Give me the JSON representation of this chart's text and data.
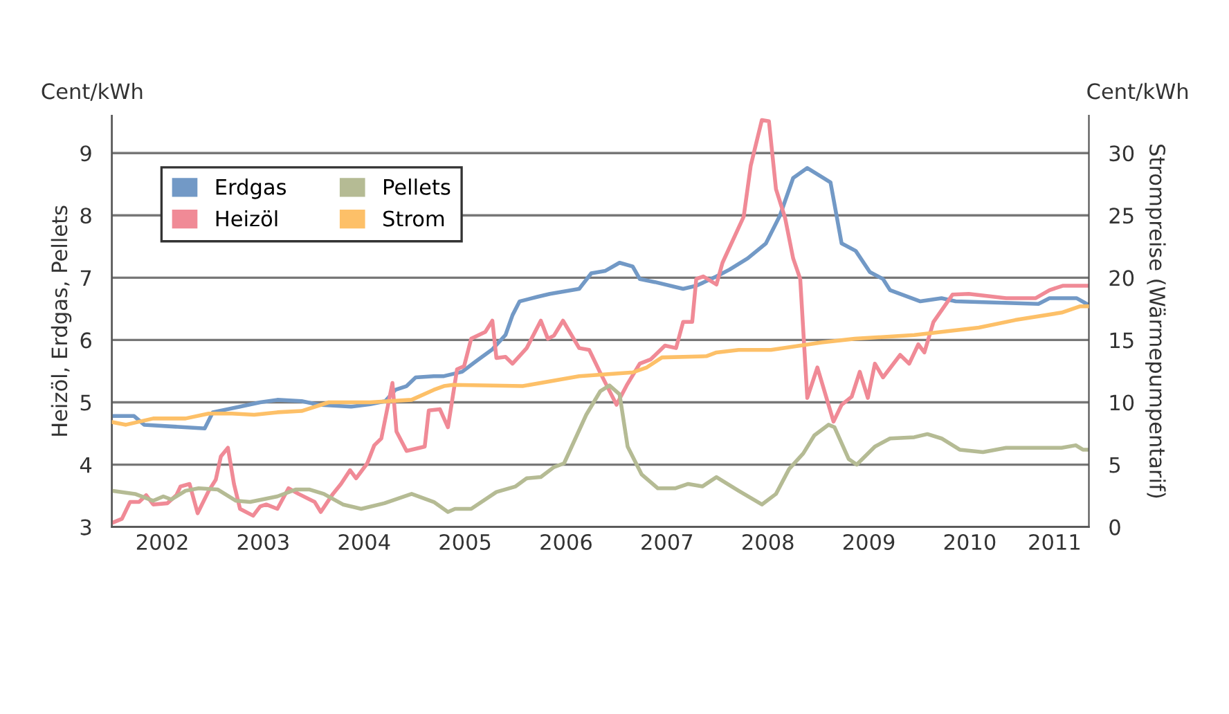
{
  "chart_data": {
    "type": "line",
    "ylabel": "Heizöl, Erdgas, Pellets",
    "y2label": "Strompreise (Wärmepumpentarif)",
    "annotations": [
      "Cent/kWh",
      "Cent/kWh"
    ],
    "xlim": [
      2002,
      2011.68
    ],
    "xticks": [
      {
        "value": 2002.5,
        "label": "2002"
      },
      {
        "value": 2003.5,
        "label": "2003"
      },
      {
        "value": 2004.5,
        "label": "2004"
      },
      {
        "value": 2005.5,
        "label": "2005"
      },
      {
        "value": 2006.5,
        "label": "2006"
      },
      {
        "value": 2007.5,
        "label": "2007"
      },
      {
        "value": 2008.5,
        "label": "2008"
      },
      {
        "value": 2009.5,
        "label": "2009"
      },
      {
        "value": 2010.5,
        "label": "2010"
      },
      {
        "value": 2011.34,
        "label": "2011"
      }
    ],
    "ylim": [
      3,
      9.6
    ],
    "yticks": [
      3,
      4,
      5,
      6,
      7,
      8,
      9
    ],
    "y2lim": [
      0,
      33
    ],
    "y2ticks": [
      0,
      5,
      10,
      15,
      20,
      25,
      30
    ],
    "grid": "y",
    "legend": "top left",
    "marker": "none",
    "line_style": "solid",
    "series": [
      {
        "name": "Erdgas",
        "color": "#7299c6",
        "x": [
          2002.01,
          2002.22,
          2002.32,
          2002.92,
          2003.0,
          2003.27,
          2003.47,
          2003.64,
          2003.88,
          2004.05,
          2004.37,
          2004.56,
          2004.71,
          2004.81,
          2004.92,
          2005.01,
          2005.19,
          2005.29,
          2005.47,
          2005.6,
          2005.77,
          2005.9,
          2005.97,
          2006.04,
          2006.21,
          2006.34,
          2006.63,
          2006.75,
          2006.89,
          2007.03,
          2007.16,
          2007.23,
          2007.38,
          2007.66,
          2007.79,
          2007.99,
          2008.12,
          2008.3,
          2008.48,
          2008.62,
          2008.75,
          2008.89,
          2009.12,
          2009.23,
          2009.37,
          2009.51,
          2009.64,
          2009.71,
          2010.01,
          2010.22,
          2010.36,
          2011.18,
          2011.29,
          2011.56,
          2011.68
        ],
        "values": [
          4.78,
          4.78,
          4.64,
          4.58,
          4.84,
          4.93,
          5.0,
          5.04,
          5.02,
          4.96,
          4.93,
          4.97,
          5.02,
          5.2,
          5.26,
          5.4,
          5.42,
          5.42,
          5.49,
          5.65,
          5.85,
          6.08,
          6.4,
          6.62,
          6.69,
          6.74,
          6.82,
          7.07,
          7.11,
          7.24,
          7.18,
          6.98,
          6.93,
          6.82,
          6.87,
          7.02,
          7.13,
          7.31,
          7.55,
          8.0,
          8.6,
          8.76,
          8.53,
          7.55,
          7.43,
          7.09,
          6.98,
          6.8,
          6.62,
          6.67,
          6.62,
          6.58,
          6.67,
          6.67,
          6.56
        ]
      },
      {
        "name": "Heizöl",
        "color": "#f08a96",
        "x": [
          2002.01,
          2002.1,
          2002.18,
          2002.27,
          2002.34,
          2002.41,
          2002.55,
          2002.64,
          2002.68,
          2002.77,
          2002.85,
          2002.96,
          2003.03,
          2003.08,
          2003.15,
          2003.21,
          2003.27,
          2003.4,
          2003.47,
          2003.53,
          2003.64,
          2003.75,
          2003.85,
          2004.01,
          2004.07,
          2004.19,
          2004.27,
          2004.36,
          2004.42,
          2004.53,
          2004.6,
          2004.67,
          2004.78,
          2004.82,
          2004.92,
          2005.1,
          2005.14,
          2005.25,
          2005.33,
          2005.42,
          2005.49,
          2005.56,
          2005.7,
          2005.77,
          2005.81,
          2005.9,
          2005.97,
          2006.11,
          2006.25,
          2006.32,
          2006.38,
          2006.47,
          2006.63,
          2006.73,
          2006.84,
          2007.0,
          2007.1,
          2007.23,
          2007.34,
          2007.48,
          2007.59,
          2007.66,
          2007.75,
          2007.79,
          2007.86,
          2007.99,
          2008.05,
          2008.26,
          2008.33,
          2008.44,
          2008.51,
          2008.58,
          2008.67,
          2008.75,
          2008.82,
          2008.89,
          2008.99,
          2009.15,
          2009.23,
          2009.33,
          2009.41,
          2009.49,
          2009.56,
          2009.64,
          2009.81,
          2009.9,
          2009.99,
          2010.05,
          2010.14,
          2010.33,
          2010.49,
          2010.86,
          2011.15,
          2011.29,
          2011.42,
          2011.59,
          2011.68
        ],
        "values": [
          3.07,
          3.13,
          3.4,
          3.4,
          3.51,
          3.36,
          3.38,
          3.51,
          3.65,
          3.69,
          3.22,
          3.58,
          3.76,
          4.13,
          4.27,
          3.69,
          3.29,
          3.18,
          3.33,
          3.36,
          3.29,
          3.62,
          3.53,
          3.4,
          3.24,
          3.53,
          3.69,
          3.91,
          3.78,
          4.02,
          4.31,
          4.42,
          5.31,
          4.53,
          4.22,
          4.29,
          4.87,
          4.89,
          4.6,
          5.53,
          5.58,
          6.02,
          6.13,
          6.31,
          5.71,
          5.73,
          5.62,
          5.87,
          6.31,
          6.02,
          6.07,
          6.31,
          5.87,
          5.84,
          5.47,
          4.96,
          5.27,
          5.62,
          5.69,
          5.91,
          5.87,
          6.29,
          6.29,
          6.98,
          7.02,
          6.89,
          7.24,
          7.98,
          8.8,
          9.53,
          9.51,
          8.42,
          7.96,
          7.31,
          6.98,
          5.07,
          5.56,
          4.69,
          4.96,
          5.09,
          5.49,
          5.07,
          5.62,
          5.4,
          5.76,
          5.62,
          5.93,
          5.8,
          6.29,
          6.73,
          6.74,
          6.67,
          6.67,
          6.8,
          6.87,
          6.87,
          6.87
        ]
      },
      {
        "name": "Pellets",
        "color": "#b5bb94",
        "x": [
          2002.01,
          2002.23,
          2002.41,
          2002.51,
          2002.59,
          2002.73,
          2002.86,
          2003.05,
          2003.23,
          2003.37,
          2003.64,
          2003.82,
          2003.96,
          2004.1,
          2004.29,
          2004.47,
          2004.7,
          2004.97,
          2005.19,
          2005.33,
          2005.4,
          2005.56,
          2005.81,
          2006.0,
          2006.11,
          2006.25,
          2006.38,
          2006.48,
          2006.7,
          2006.84,
          2006.93,
          2007.03,
          2007.11,
          2007.25,
          2007.41,
          2007.58,
          2007.71,
          2007.85,
          2007.99,
          2008.21,
          2008.44,
          2008.58,
          2008.71,
          2008.85,
          2008.96,
          2009.1,
          2009.16,
          2009.3,
          2009.38,
          2009.56,
          2009.71,
          2009.95,
          2010.08,
          2010.22,
          2010.4,
          2010.63,
          2010.86,
          2011.41,
          2011.55,
          2011.62,
          2011.68
        ],
        "values": [
          3.58,
          3.53,
          3.42,
          3.49,
          3.44,
          3.58,
          3.62,
          3.6,
          3.42,
          3.4,
          3.49,
          3.6,
          3.6,
          3.53,
          3.36,
          3.29,
          3.38,
          3.53,
          3.4,
          3.24,
          3.29,
          3.29,
          3.56,
          3.65,
          3.78,
          3.8,
          3.96,
          4.02,
          4.8,
          5.18,
          5.27,
          5.13,
          4.29,
          3.84,
          3.62,
          3.62,
          3.69,
          3.65,
          3.8,
          3.58,
          3.36,
          3.53,
          3.93,
          4.18,
          4.47,
          4.64,
          4.6,
          4.09,
          4.0,
          4.29,
          4.42,
          4.44,
          4.49,
          4.42,
          4.24,
          4.2,
          4.27,
          4.27,
          4.31,
          4.24,
          4.24
        ]
      },
      {
        "name": "Strom",
        "color": "#fdc068",
        "axis": "y2",
        "x": [
          2002.01,
          2002.14,
          2002.41,
          2002.73,
          2002.96,
          2003.19,
          2003.41,
          2003.64,
          2003.88,
          2004.15,
          2004.56,
          2004.97,
          2005.19,
          2005.29,
          2005.38,
          2006.07,
          2006.63,
          2007.16,
          2007.3,
          2007.45,
          2007.89,
          2007.99,
          2008.21,
          2008.53,
          2009.03,
          2009.36,
          2009.95,
          2010.59,
          2010.95,
          2011.41,
          2011.59,
          2011.68
        ],
        "values": [
          8.4,
          8.2,
          8.7,
          8.7,
          9.1,
          9.1,
          9.0,
          9.2,
          9.3,
          10.0,
          10.0,
          10.2,
          11.0,
          11.3,
          11.4,
          11.3,
          12.1,
          12.4,
          12.8,
          13.6,
          13.7,
          14.0,
          14.2,
          14.2,
          14.8,
          15.1,
          15.4,
          16.0,
          16.6,
          17.2,
          17.7,
          17.7
        ]
      }
    ]
  }
}
